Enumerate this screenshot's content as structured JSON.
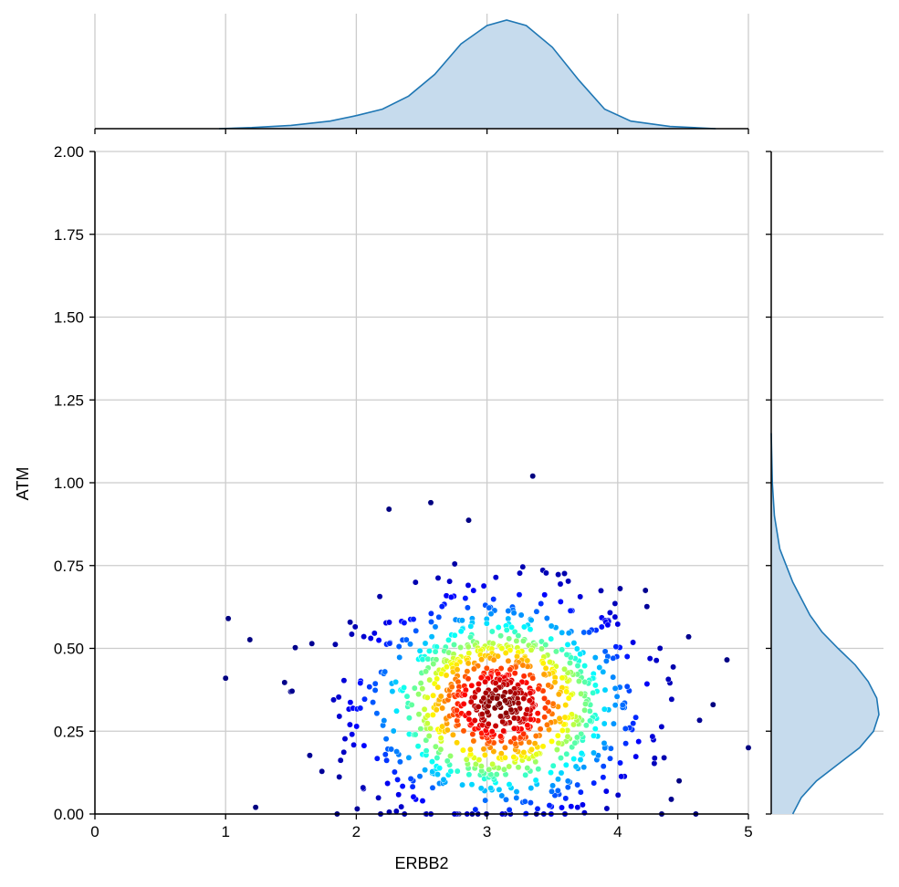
{
  "chart_data": {
    "type": "scatter",
    "variant": "joint-plot-with-marginal-kde",
    "xlabel": "ERBB2",
    "ylabel": "ATM",
    "xlim": [
      0,
      5
    ],
    "ylim": [
      0,
      2
    ],
    "x_ticks": [
      "0",
      "1",
      "2",
      "3",
      "4",
      "5"
    ],
    "y_ticks": [
      "0.00",
      "0.25",
      "0.50",
      "0.75",
      "1.00",
      "1.25",
      "1.50",
      "1.75",
      "2.00"
    ],
    "grid": true,
    "colormap": "jet",
    "color_encoding": "point density",
    "n_points": 1000,
    "x_distribution": {
      "center": 3.1,
      "spread": 0.55
    },
    "y_distribution": {
      "center": 0.33,
      "spread": 0.17,
      "clipped_at": 0
    },
    "notable_points": [
      {
        "x": 1.0,
        "y": 0.41
      },
      {
        "x": 1.02,
        "y": 0.59
      },
      {
        "x": 3.35,
        "y": 1.02
      },
      {
        "x": 2.57,
        "y": 0.94
      },
      {
        "x": 2.25,
        "y": 0.92
      },
      {
        "x": 4.73,
        "y": 0.33
      },
      {
        "x": 5.0,
        "y": 0.2
      },
      {
        "x": 4.47,
        "y": 0.1
      },
      {
        "x": 1.23,
        "y": 0.02
      }
    ],
    "marginal_x_kde": {
      "x": [
        0.95,
        1.2,
        1.5,
        1.8,
        2.0,
        2.2,
        2.4,
        2.6,
        2.8,
        3.0,
        3.15,
        3.3,
        3.5,
        3.7,
        3.9,
        4.1,
        4.4,
        4.75
      ],
      "density": [
        0.0,
        0.01,
        0.03,
        0.07,
        0.12,
        0.18,
        0.3,
        0.5,
        0.78,
        0.95,
        1.0,
        0.95,
        0.75,
        0.45,
        0.18,
        0.07,
        0.02,
        0.0
      ]
    },
    "marginal_y_kde": {
      "y": [
        0.0,
        0.05,
        0.1,
        0.15,
        0.2,
        0.25,
        0.3,
        0.35,
        0.4,
        0.45,
        0.5,
        0.55,
        0.6,
        0.65,
        0.7,
        0.75,
        0.8,
        0.9,
        1.0,
        1.15
      ],
      "density": [
        0.2,
        0.28,
        0.42,
        0.62,
        0.82,
        0.95,
        1.0,
        0.98,
        0.9,
        0.78,
        0.62,
        0.47,
        0.36,
        0.28,
        0.2,
        0.14,
        0.08,
        0.03,
        0.01,
        0.0
      ]
    },
    "kde_color": "#1f77b4",
    "kde_fill": "#c6dbed"
  }
}
